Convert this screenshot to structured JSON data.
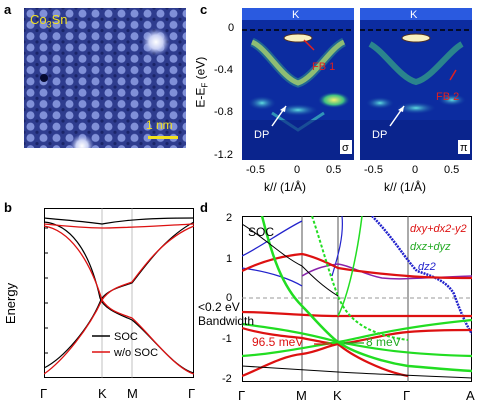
{
  "panel_a": {
    "label": "a",
    "material": "Co",
    "material_sub": "3",
    "material_tail": "Sn",
    "scalebar": "1 nm"
  },
  "panel_b": {
    "label": "b",
    "ylabel": "Energy",
    "xticks": [
      "Γ",
      "K",
      "M",
      "Γ"
    ],
    "legend": [
      {
        "name": "SOC",
        "color": "#000000"
      },
      {
        "name": "w/o SOC",
        "color": "#dd1111"
      }
    ]
  },
  "panel_c": {
    "label": "c",
    "ylabel_main": "E-E",
    "ylabel_sub": "F",
    "ylabel_unit": " (eV)",
    "yticks": [
      "0",
      "-0.4",
      "-0.8",
      "-1.2"
    ],
    "xticks": [
      "-0.5",
      "0",
      "0.5"
    ],
    "xlabel": "k// (1/Å)",
    "left": {
      "k_label": "K",
      "fb": "FB 1",
      "dp": "DP",
      "pol": "σ"
    },
    "right": {
      "k_label": "K",
      "fb": "FB 2",
      "dp": "DP",
      "pol": "π"
    }
  },
  "panel_d": {
    "label": "d",
    "soc": "SOC",
    "yticks": [
      "2",
      "1",
      "0",
      "-1",
      "-2"
    ],
    "xticks": [
      "Γ",
      "M",
      "K",
      "Γ",
      "A"
    ],
    "bw_text_1": "<0.2 eV",
    "bw_text_2": "Bandwidth",
    "gap1": "96.5 meV",
    "gap2": "8 meV",
    "orb1": "dxy+dx2-y2",
    "orb2": "dxz+dyz",
    "orb3": "dz2",
    "colors": {
      "xy": "#dd1111",
      "xz": "#22dd22",
      "z2": "#2222cc"
    }
  }
}
